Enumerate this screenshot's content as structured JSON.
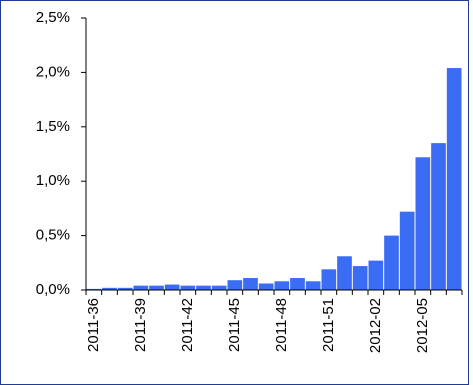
{
  "chart_data": {
    "type": "bar",
    "categories": [
      "2011-36",
      null,
      null,
      "2011-39",
      null,
      null,
      "2011-42",
      null,
      null,
      "2011-45",
      null,
      null,
      "2011-48",
      null,
      null,
      "2011-51",
      null,
      null,
      "2012-02",
      null,
      null,
      "2012-05",
      null,
      null
    ],
    "values": [
      0.01,
      0.02,
      0.02,
      0.04,
      0.04,
      0.05,
      0.04,
      0.04,
      0.04,
      0.09,
      0.11,
      0.06,
      0.08,
      0.11,
      0.08,
      0.19,
      0.31,
      0.22,
      0.27,
      0.5,
      0.72,
      1.22,
      1.35,
      2.04
    ],
    "color": "#3a6cf4",
    "ylim": [
      0,
      2.5
    ],
    "yticks": [
      {
        "value": 0,
        "label": "0,0%"
      },
      {
        "value": 0.5,
        "label": "0,5%"
      },
      {
        "value": 1,
        "label": "1,0%"
      },
      {
        "value": 1.5,
        "label": "1,5%"
      },
      {
        "value": 2,
        "label": "2,0%"
      },
      {
        "value": 2.5,
        "label": "2,5%"
      }
    ],
    "grid": false
  }
}
